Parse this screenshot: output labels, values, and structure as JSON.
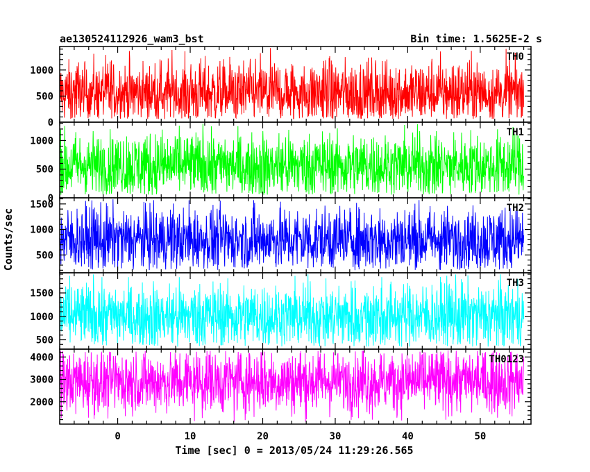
{
  "chart_data": {
    "type": "line",
    "title": "ae130524112926_wam3_bst",
    "subtitle": "Bin time: 1.5625E-2 s",
    "xlabel": "Time [sec] 0 = 2013/05/24 11:29:26.565",
    "ylabel": "Counts/sec",
    "xlim": [
      -8,
      57
    ],
    "x_ticks": [
      0,
      10,
      20,
      30,
      40,
      50
    ],
    "x_tick_labels": [
      "0",
      "10",
      "20",
      "30",
      "40",
      "50"
    ],
    "x_range": [
      -8,
      56
    ],
    "grid": false,
    "panels": [
      {
        "name": "TH0",
        "color": "#ff0000",
        "ylim": [
          0,
          1450
        ],
        "y_ticks": [
          0,
          500,
          1000
        ],
        "y_tick_labels": [
          "0",
          "500",
          "1000"
        ],
        "mean": 560,
        "min": 60,
        "max": 1420
      },
      {
        "name": "TH1",
        "color": "#00ff00",
        "ylim": [
          0,
          1320
        ],
        "y_ticks": [
          0,
          500,
          1000
        ],
        "y_tick_labels": [
          "0",
          "500",
          "1000"
        ],
        "mean": 560,
        "min": 50,
        "max": 1300
      },
      {
        "name": "TH2",
        "color": "#0000ff",
        "ylim": [
          150,
          1620
        ],
        "y_ticks": [
          500,
          1000,
          1500
        ],
        "y_tick_labels": [
          "500",
          "1000",
          "1500"
        ],
        "mean": 800,
        "min": 200,
        "max": 1600
      },
      {
        "name": "TH3",
        "color": "#00ffff",
        "ylim": [
          300,
          1930
        ],
        "y_ticks": [
          500,
          1000,
          1500
        ],
        "y_tick_labels": [
          "500",
          "1000",
          "1500"
        ],
        "mean": 1000,
        "min": 350,
        "max": 1900
      },
      {
        "name": "TH0123",
        "color": "#ff00ff",
        "ylim": [
          1000,
          4350
        ],
        "y_ticks": [
          2000,
          3000,
          4000
        ],
        "y_tick_labels": [
          "2000",
          "3000",
          "4000"
        ],
        "mean": 2920,
        "min": 1100,
        "max": 4300
      }
    ]
  }
}
